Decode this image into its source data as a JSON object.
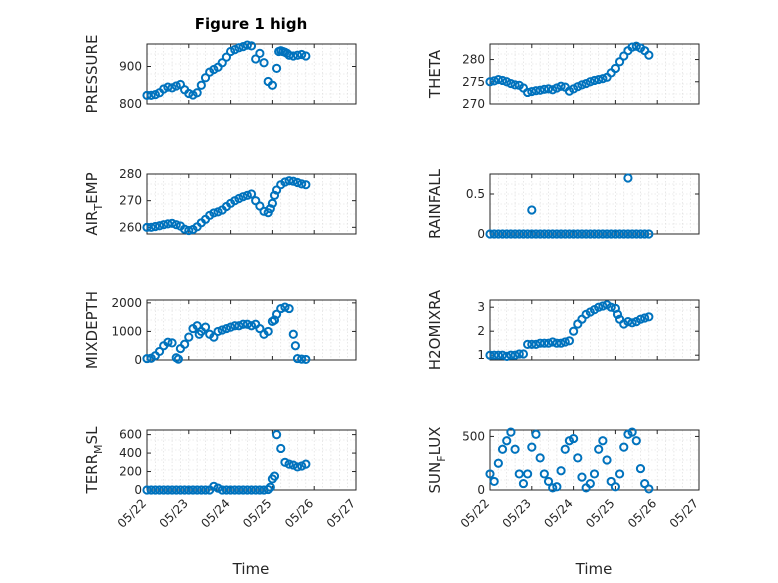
{
  "colors": {
    "series": "#0072BD",
    "axis": "#262626",
    "grid": "#d9d9d9"
  },
  "chart_data": [
    {
      "type": "scatter",
      "title": "Figure 1 high",
      "ylabel": "PRESSURE",
      "ylim": [
        800,
        960
      ],
      "yticks": [
        800,
        900
      ],
      "x": [
        0,
        0.1,
        0.2,
        0.3,
        0.4,
        0.5,
        0.6,
        0.7,
        0.8,
        0.9,
        1,
        1.1,
        1.2,
        1.3,
        1.4,
        1.5,
        1.6,
        1.7,
        1.8,
        1.9,
        2,
        2.1,
        2.2,
        2.3,
        2.4,
        2.5,
        2.6,
        2.7,
        2.8,
        2.9,
        3,
        3.1,
        3.15,
        3.2,
        3.25,
        3.3,
        3.35,
        3.4,
        3.5,
        3.6,
        3.7,
        3.8
      ],
      "y": [
        823,
        823,
        825,
        830,
        840,
        845,
        843,
        848,
        852,
        838,
        828,
        824,
        830,
        850,
        870,
        885,
        892,
        898,
        910,
        925,
        940,
        945,
        950,
        953,
        957,
        955,
        920,
        935,
        910,
        860,
        850,
        895,
        940,
        942,
        940,
        938,
        935,
        930,
        928,
        930,
        932,
        928
      ]
    },
    {
      "type": "scatter",
      "ylabel": "THETA",
      "ylim": [
        270,
        283.5
      ],
      "yticks": [
        270,
        275,
        280
      ],
      "x": [
        0,
        0.1,
        0.2,
        0.3,
        0.4,
        0.5,
        0.6,
        0.7,
        0.8,
        0.9,
        1,
        1.1,
        1.2,
        1.3,
        1.4,
        1.5,
        1.6,
        1.7,
        1.8,
        1.9,
        2,
        2.1,
        2.2,
        2.3,
        2.4,
        2.5,
        2.6,
        2.7,
        2.8,
        2.9,
        3,
        3.1,
        3.2,
        3.3,
        3.4,
        3.5,
        3.6,
        3.7,
        3.8
      ],
      "y": [
        275,
        275.2,
        275.5,
        275.3,
        275,
        274.6,
        274.3,
        274.2,
        273.6,
        272.6,
        272.8,
        273,
        273.1,
        273.3,
        273.4,
        273.2,
        273.6,
        274,
        273.8,
        272.9,
        273.4,
        273.9,
        274.3,
        274.6,
        275,
        275.3,
        275.5,
        275.7,
        276,
        277,
        278,
        279.5,
        280.8,
        282,
        282.8,
        283,
        282.6,
        282,
        281
      ]
    },
    {
      "type": "scatter",
      "ylabel": "AIR_TEMP",
      "ylabel_main": "AIR",
      "ylabel_sub": "T",
      "ylabel_rest": "EMP",
      "ylim": [
        257.5,
        280
      ],
      "yticks": [
        260,
        270,
        280
      ],
      "x": [
        0,
        0.1,
        0.2,
        0.3,
        0.4,
        0.5,
        0.6,
        0.7,
        0.8,
        0.9,
        1,
        1.1,
        1.2,
        1.3,
        1.4,
        1.5,
        1.6,
        1.7,
        1.8,
        1.9,
        2,
        2.1,
        2.2,
        2.3,
        2.4,
        2.5,
        2.6,
        2.7,
        2.8,
        2.9,
        2.95,
        3,
        3.05,
        3.1,
        3.2,
        3.3,
        3.4,
        3.5,
        3.6,
        3.7,
        3.8
      ],
      "y": [
        260,
        260,
        260.3,
        260.6,
        261,
        261.3,
        261.5,
        261,
        260.5,
        259.3,
        258.8,
        259.2,
        260.2,
        261.7,
        263,
        264.5,
        265.4,
        265.8,
        266.5,
        267.8,
        269,
        270,
        270.8,
        271.5,
        272,
        272.5,
        270,
        268,
        266,
        265.5,
        267,
        269,
        272,
        274,
        276,
        277,
        277.5,
        277.3,
        276.8,
        276.3,
        276
      ]
    },
    {
      "type": "scatter",
      "ylabel": "RAINFALL",
      "ylim": [
        0,
        0.75
      ],
      "yticks": [
        0,
        0.5
      ],
      "x": [
        0,
        0.1,
        0.2,
        0.3,
        0.4,
        0.5,
        0.6,
        0.7,
        0.8,
        0.9,
        1,
        1.1,
        1.2,
        1.3,
        1.4,
        1.5,
        1.6,
        1.7,
        1.8,
        1.9,
        2,
        2.1,
        2.2,
        2.3,
        2.4,
        2.5,
        2.6,
        2.7,
        2.8,
        2.9,
        3,
        3.1,
        3.2,
        3.3,
        3.4,
        3.5,
        3.6,
        3.7,
        3.8,
        1,
        3.3
      ],
      "y": [
        0,
        0,
        0,
        0,
        0,
        0,
        0,
        0,
        0,
        0,
        0,
        0,
        0,
        0,
        0,
        0,
        0,
        0,
        0,
        0,
        0,
        0,
        0,
        0,
        0,
        0,
        0,
        0,
        0,
        0,
        0,
        0,
        0,
        0,
        0,
        0,
        0,
        0,
        0,
        0.3,
        0.7
      ]
    },
    {
      "type": "scatter",
      "ylabel": "MIXDEPTH",
      "ylim": [
        0,
        2100
      ],
      "yticks": [
        0,
        1000,
        2000
      ],
      "x": [
        0,
        0.1,
        0.2,
        0.3,
        0.4,
        0.5,
        0.6,
        0.7,
        0.75,
        0.8,
        0.9,
        1,
        1.1,
        1.2,
        1.25,
        1.3,
        1.4,
        1.5,
        1.6,
        1.7,
        1.8,
        1.9,
        2,
        2.1,
        2.2,
        2.3,
        2.4,
        2.5,
        2.6,
        2.7,
        2.8,
        2.9,
        3,
        3.05,
        3.1,
        3.2,
        3.3,
        3.4,
        3.5,
        3.55,
        3.6,
        3.7,
        3.8
      ],
      "y": [
        50,
        60,
        150,
        300,
        500,
        620,
        600,
        80,
        30,
        400,
        550,
        800,
        1100,
        1200,
        900,
        1000,
        1150,
        900,
        800,
        1000,
        1050,
        1100,
        1150,
        1200,
        1200,
        1250,
        1250,
        1200,
        1250,
        1100,
        900,
        1000,
        1350,
        1400,
        1600,
        1800,
        1850,
        1800,
        900,
        500,
        50,
        30,
        20
      ]
    },
    {
      "type": "scatter",
      "ylabel": "H2OMIXRA",
      "ylim": [
        0.8,
        3.3
      ],
      "yticks": [
        1,
        2,
        3
      ],
      "x": [
        0,
        0.1,
        0.2,
        0.3,
        0.4,
        0.5,
        0.6,
        0.7,
        0.8,
        0.9,
        1,
        1.1,
        1.2,
        1.3,
        1.4,
        1.5,
        1.6,
        1.7,
        1.8,
        1.9,
        2,
        2.1,
        2.2,
        2.3,
        2.4,
        2.5,
        2.6,
        2.7,
        2.8,
        2.9,
        3,
        3.05,
        3.1,
        3.2,
        3.3,
        3.4,
        3.5,
        3.6,
        3.7,
        3.8
      ],
      "y": [
        1,
        1,
        1,
        1,
        0.95,
        1,
        1,
        1.05,
        1.05,
        1.45,
        1.45,
        1.45,
        1.5,
        1.5,
        1.5,
        1.55,
        1.5,
        1.5,
        1.55,
        1.6,
        2,
        2.3,
        2.5,
        2.7,
        2.8,
        2.9,
        3,
        3.05,
        3.1,
        3,
        2.95,
        2.7,
        2.5,
        2.3,
        2.4,
        2.35,
        2.4,
        2.5,
        2.55,
        2.6
      ]
    },
    {
      "type": "scatter",
      "ylabel": "TERR_MSL",
      "ylabel_main": "TERR",
      "ylabel_sub": "M",
      "ylabel_rest": "SL",
      "ylim": [
        0,
        650
      ],
      "yticks": [
        0,
        200,
        400,
        600
      ],
      "x": [
        0,
        0.1,
        0.2,
        0.3,
        0.4,
        0.5,
        0.6,
        0.7,
        0.8,
        0.9,
        1,
        1.1,
        1.2,
        1.3,
        1.4,
        1.5,
        1.6,
        1.7,
        1.8,
        1.9,
        2,
        2.1,
        2.2,
        2.3,
        2.4,
        2.5,
        2.6,
        2.7,
        2.8,
        2.9,
        2.95,
        3,
        3.05,
        3.1,
        3.2,
        3.3,
        3.4,
        3.5,
        3.6,
        3.7,
        3.8
      ],
      "y": [
        0,
        0,
        0,
        0,
        0,
        0,
        0,
        0,
        0,
        0,
        0,
        0,
        0,
        0,
        0,
        0,
        40,
        20,
        0,
        0,
        0,
        0,
        0,
        0,
        0,
        0,
        0,
        0,
        0,
        5,
        30,
        120,
        150,
        600,
        450,
        300,
        280,
        270,
        250,
        260,
        280
      ]
    },
    {
      "type": "scatter",
      "ylabel": "SUN_FLUX",
      "ylabel_main": "SUN",
      "ylabel_sub": "F",
      "ylabel_rest": "LUX",
      "ylim": [
        0,
        560
      ],
      "yticks": [
        0,
        500
      ],
      "x": [
        0,
        0.1,
        0.2,
        0.3,
        0.4,
        0.5,
        0.6,
        0.7,
        0.8,
        0.9,
        1,
        1.1,
        1.2,
        1.3,
        1.4,
        1.5,
        1.6,
        1.7,
        1.8,
        1.9,
        2,
        2.1,
        2.2,
        2.3,
        2.4,
        2.5,
        2.6,
        2.7,
        2.8,
        2.9,
        3,
        3.1,
        3.2,
        3.3,
        3.4,
        3.5,
        3.6,
        3.7,
        3.8
      ],
      "y": [
        150,
        80,
        250,
        380,
        460,
        540,
        380,
        150,
        60,
        150,
        400,
        520,
        300,
        150,
        80,
        20,
        30,
        180,
        380,
        460,
        480,
        300,
        120,
        20,
        60,
        150,
        380,
        460,
        280,
        80,
        30,
        150,
        400,
        520,
        540,
        460,
        200,
        60,
        10
      ]
    }
  ],
  "x_axis": {
    "ticks": [
      0,
      1,
      2,
      3,
      4,
      5
    ],
    "tick_labels": [
      "05/22",
      "05/23",
      "05/24",
      "05/25",
      "05/26",
      "05/27"
    ],
    "label": "Time"
  }
}
